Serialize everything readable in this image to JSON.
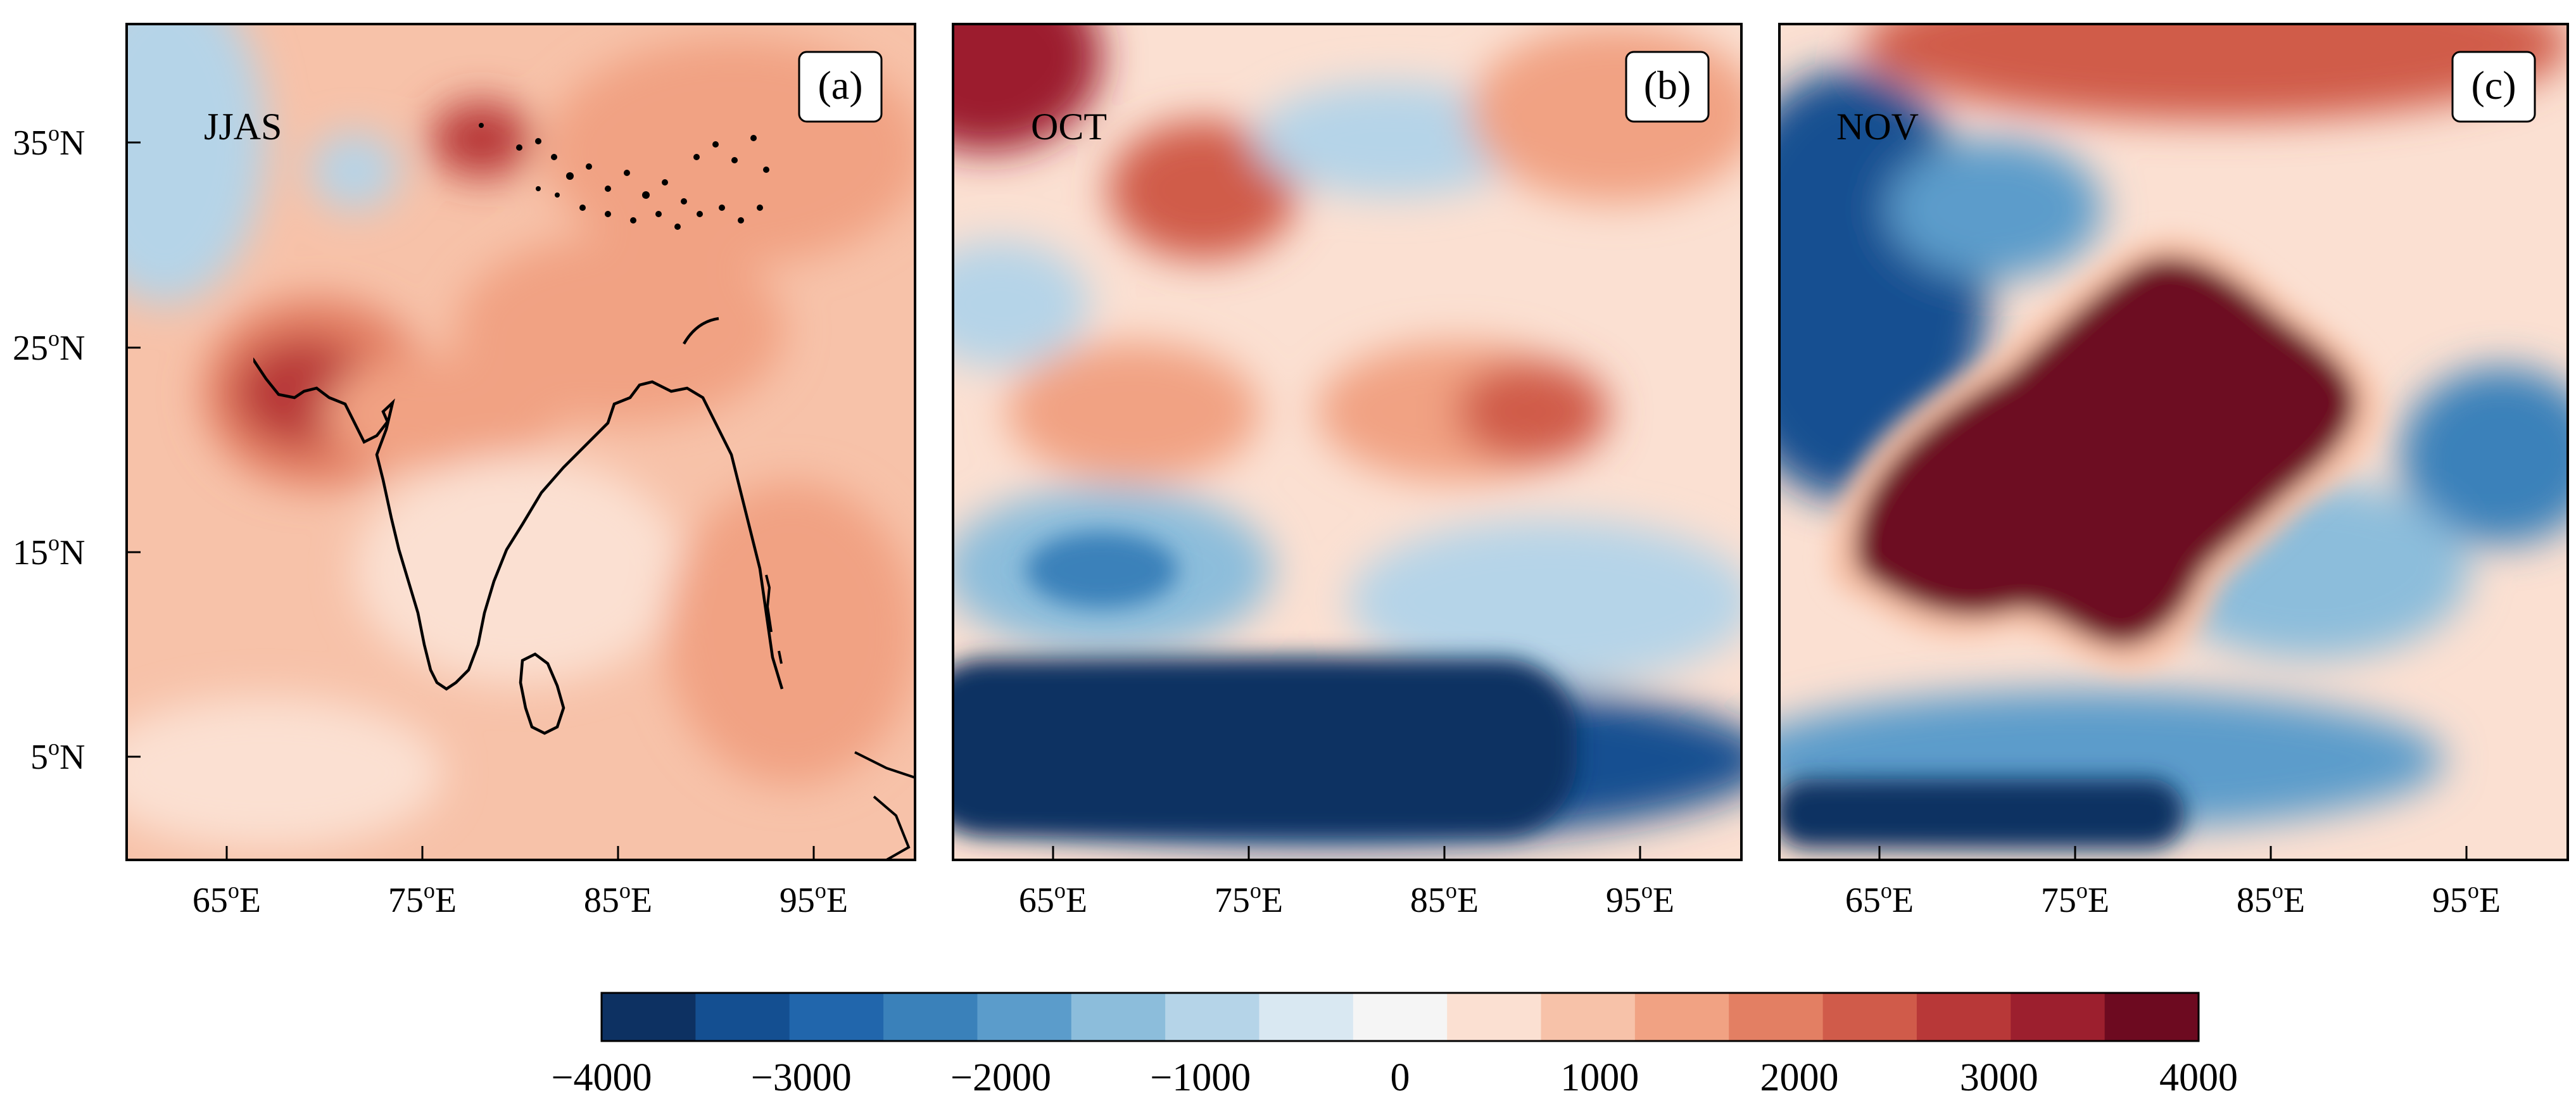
{
  "figure": {
    "panels": [
      {
        "id": "(a)",
        "label": "JJAS"
      },
      {
        "id": "(b)",
        "label": "OCT"
      },
      {
        "id": "(c)",
        "label": "NOV"
      }
    ],
    "lat_ticks": [
      {
        "deg": "35",
        "o": "o",
        "hemi": "N"
      },
      {
        "deg": "25",
        "o": "o",
        "hemi": "N"
      },
      {
        "deg": "15",
        "o": "o",
        "hemi": "N"
      },
      {
        "deg": "5",
        "o": "o",
        "hemi": "N"
      }
    ],
    "lon_ticks": [
      {
        "deg": "65",
        "o": "o",
        "hemi": "E"
      },
      {
        "deg": "75",
        "o": "o",
        "hemi": "E"
      },
      {
        "deg": "85",
        "o": "o",
        "hemi": "E"
      },
      {
        "deg": "95",
        "o": "o",
        "hemi": "E"
      }
    ],
    "colorbar": {
      "min": -4000,
      "max": 4000,
      "step": 500,
      "tick_labels": [
        "−4000",
        "−3000",
        "−2000",
        "−1000",
        "0",
        "1000",
        "2000",
        "3000",
        "4000"
      ],
      "colors": [
        "#0d3162",
        "#144f91",
        "#2166ac",
        "#3a81ba",
        "#5b9ccb",
        "#8cbddb",
        "#b5d4e8",
        "#d9e8f2",
        "#f5f5f5",
        "#fbe0d2",
        "#f7c2a9",
        "#f1a283",
        "#e37f63",
        "#d05b4a",
        "#b83838",
        "#9c1f2e",
        "#6d0a20"
      ]
    }
  },
  "chart_data": {
    "type": "heatmap",
    "title": "",
    "panels": [
      "JJAS",
      "OCT",
      "NOV"
    ],
    "lon_range": [
      60,
      100
    ],
    "lat_range": [
      0,
      40
    ],
    "lon_ticks": [
      65,
      75,
      85,
      95
    ],
    "lat_ticks": [
      5,
      15,
      25,
      35
    ],
    "color_range": [
      -4000,
      4000
    ],
    "contour_step": 500,
    "colorbar_ticks": [
      -4000,
      -3000,
      -2000,
      -1000,
      0,
      1000,
      2000,
      3000,
      4000
    ]
  }
}
